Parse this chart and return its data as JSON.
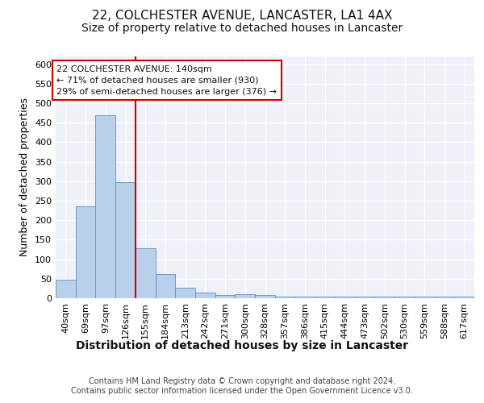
{
  "title1": "22, COLCHESTER AVENUE, LANCASTER, LA1 4AX",
  "title2": "Size of property relative to detached houses in Lancaster",
  "xlabel": "Distribution of detached houses by size in Lancaster",
  "ylabel": "Number of detached properties",
  "categories": [
    "40sqm",
    "69sqm",
    "97sqm",
    "126sqm",
    "155sqm",
    "184sqm",
    "213sqm",
    "242sqm",
    "271sqm",
    "300sqm",
    "328sqm",
    "357sqm",
    "386sqm",
    "415sqm",
    "444sqm",
    "473sqm",
    "502sqm",
    "530sqm",
    "559sqm",
    "588sqm",
    "617sqm"
  ],
  "values": [
    48,
    235,
    470,
    298,
    128,
    62,
    27,
    14,
    9,
    10,
    8,
    4,
    4,
    4,
    4,
    4,
    4,
    4,
    4,
    4,
    4
  ],
  "bar_color": "#b8d0ea",
  "bar_edge_color": "#5b8ec4",
  "vline_color": "#cc0000",
  "annotation_text": "22 COLCHESTER AVENUE: 140sqm\n← 71% of detached houses are smaller (930)\n29% of semi-detached houses are larger (376) →",
  "annotation_box_color": "#ffffff",
  "annotation_box_edge": "#cc0000",
  "ylim": [
    0,
    620
  ],
  "yticks": [
    0,
    50,
    100,
    150,
    200,
    250,
    300,
    350,
    400,
    450,
    500,
    550,
    600
  ],
  "background_color": "#eef2f8",
  "grid_color": "#ffffff",
  "footer1": "Contains HM Land Registry data © Crown copyright and database right 2024.",
  "footer2": "Contains public sector information licensed under the Open Government Licence v3.0.",
  "title1_fontsize": 11,
  "title2_fontsize": 10,
  "xlabel_fontsize": 10,
  "ylabel_fontsize": 9,
  "tick_fontsize": 8,
  "annotation_fontsize": 8,
  "footer_fontsize": 7
}
